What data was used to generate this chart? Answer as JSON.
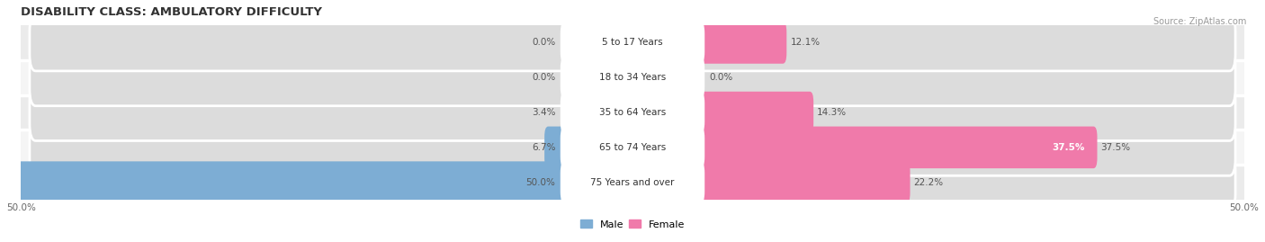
{
  "title": "DISABILITY CLASS: AMBULATORY DIFFICULTY",
  "source": "Source: ZipAtlas.com",
  "categories": [
    "5 to 17 Years",
    "18 to 34 Years",
    "35 to 64 Years",
    "65 to 74 Years",
    "75 Years and over"
  ],
  "male_values": [
    0.0,
    0.0,
    3.4,
    6.7,
    50.0
  ],
  "female_values": [
    12.1,
    0.0,
    14.3,
    37.5,
    22.2
  ],
  "male_color": "#7dadd4",
  "female_color": "#f07aaa",
  "bar_bg_color": "#dcdcdc",
  "row_bg_even": "#f0f0f0",
  "row_bg_odd": "#e8e8e8",
  "max_val": 50.0,
  "bar_height": 0.62,
  "title_fontsize": 9.5,
  "label_fontsize": 7.5,
  "cat_fontsize": 7.5,
  "tick_fontsize": 7.5,
  "source_fontsize": 7.0,
  "center_label_bg": "#ffffff"
}
